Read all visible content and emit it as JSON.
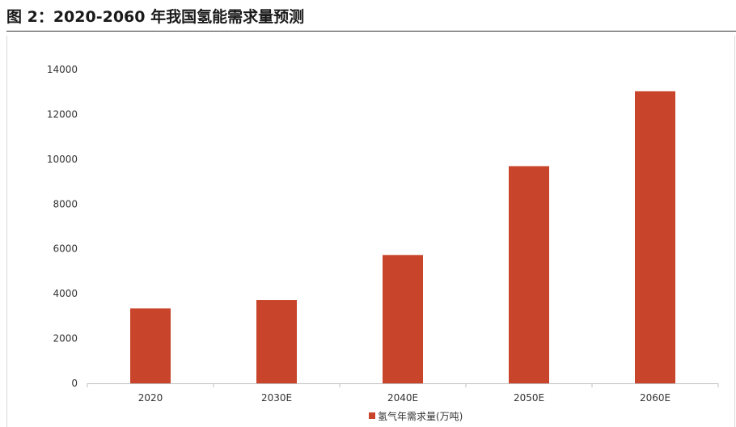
{
  "title": "图 2：2020-2060 年我国氢能需求量预测",
  "chart_data": {
    "type": "bar",
    "categories": [
      "2020",
      "2030E",
      "2040E",
      "2050E",
      "2060E"
    ],
    "series": [
      {
        "name": "氢气年需求量(万吨)",
        "values": [
          3342,
          3715,
          5726,
          9690,
          13030
        ]
      }
    ],
    "ylim": [
      0,
      14000
    ],
    "yticks": [
      0,
      2000,
      4000,
      6000,
      8000,
      10000,
      12000,
      14000
    ],
    "grid": false,
    "legend_position": "bottom",
    "colors": {
      "bar": "#c8442a",
      "axis": "#bfbfbf",
      "text": "#333333"
    }
  }
}
